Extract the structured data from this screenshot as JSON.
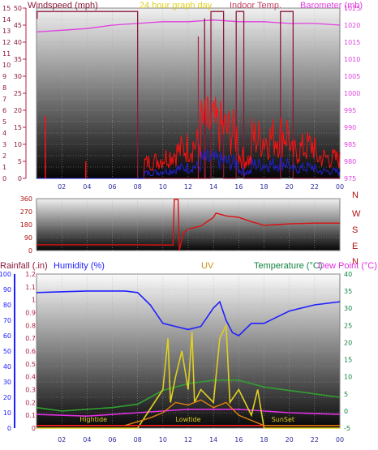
{
  "chart_data": [
    {
      "type": "line",
      "title": "24 hour graph day",
      "labels": {
        "windspeed": "Windspeed (mph)",
        "title": "24 hour graph day",
        "indoor": "Indoor Temp.",
        "barometer": "Barometer (mb)"
      },
      "x_ticks": [
        "02",
        "04",
        "06",
        "08",
        "10",
        "12",
        "14",
        "16",
        "18",
        "20",
        "22",
        "00"
      ],
      "windspeed_axis": {
        "ticks": [
          0,
          1,
          2,
          3,
          4,
          5,
          6,
          7,
          8,
          9,
          10,
          11,
          12,
          13,
          14,
          15
        ],
        "max_label": "50",
        "ylim": [
          0,
          15
        ]
      },
      "mid_axis": {
        "ticks": [
          0,
          5,
          10,
          15,
          20,
          25,
          30,
          35,
          40,
          45,
          50
        ]
      },
      "barometer_axis": {
        "ticks": [
          975,
          980,
          985,
          990,
          995,
          1000,
          1005,
          1010,
          1015,
          1020,
          1025
        ],
        "ylim": [
          975,
          1025
        ]
      },
      "series": [
        {
          "name": "Barometer",
          "color": "#e040e0",
          "points": [
            [
              0,
              1018
            ],
            [
              2,
              1018.5
            ],
            [
              4,
              1019
            ],
            [
              6,
              1020
            ],
            [
              8,
              1020.5
            ],
            [
              10,
              1021
            ],
            [
              12,
              1021
            ],
            [
              14,
              1021.5
            ],
            [
              16,
              1021
            ],
            [
              18,
              1021
            ],
            [
              20,
              1020.5
            ],
            [
              22,
              1020.5
            ],
            [
              24,
              1020
            ]
          ]
        },
        {
          "name": "Indoor Temp.",
          "color": "#8b1a3a",
          "points": [
            [
              0,
              47
            ],
            [
              0.05,
              47
            ],
            [
              0.05,
              49
            ],
            [
              8,
              49
            ],
            [
              8,
              0
            ],
            [
              13.3,
              0
            ],
            [
              13.3,
              47
            ],
            [
              13.35,
              0
            ],
            [
              13.8,
              0
            ],
            [
              13.8,
              49
            ],
            [
              14.8,
              49
            ],
            [
              14.8,
              0
            ],
            [
              15.8,
              0
            ],
            [
              15.8,
              49
            ],
            [
              16.4,
              49
            ],
            [
              16.4,
              0
            ],
            [
              19.3,
              0
            ],
            [
              19.3,
              49
            ],
            [
              20.3,
              49
            ],
            [
              20.3,
              0
            ],
            [
              24,
              0
            ]
          ]
        }
      ]
    },
    {
      "type": "line",
      "title": "",
      "axis_ticks": [
        0,
        90,
        180,
        270,
        360
      ],
      "directions": [
        "N",
        "W",
        "S",
        "E",
        "N"
      ],
      "x_ticks": [
        "02",
        "04",
        "06",
        "08",
        "10",
        "12",
        "14",
        "16",
        "18",
        "20",
        "22",
        "00"
      ],
      "series": [
        {
          "name": "Wind direction",
          "color": "#dd1010",
          "points": [
            [
              0,
              40
            ],
            [
              6,
              40
            ],
            [
              8,
              40
            ],
            [
              10.8,
              38
            ],
            [
              10.9,
              355
            ],
            [
              11.2,
              355
            ],
            [
              11.3,
              0
            ],
            [
              11.6,
              120
            ],
            [
              12,
              150
            ],
            [
              13,
              170
            ],
            [
              13.5,
              200
            ],
            [
              14,
              230
            ],
            [
              14.2,
              260
            ],
            [
              15,
              240
            ],
            [
              16,
              230
            ],
            [
              17,
              200
            ],
            [
              18,
              175
            ],
            [
              19,
              180
            ],
            [
              20,
              185
            ],
            [
              22,
              190
            ],
            [
              24,
              190
            ]
          ]
        }
      ]
    },
    {
      "type": "line",
      "title": "",
      "labels": {
        "rainfall": "Rainfall (.in)",
        "humidity": "Humidity (%)",
        "uv": "UV",
        "temperature": "Temperature (°C)",
        "dewpoint": "Dew Point (°C)"
      },
      "x_ticks": [
        "02",
        "04",
        "06",
        "08",
        "10",
        "12",
        "14",
        "16",
        "18",
        "20",
        "22",
        "00"
      ],
      "humidity_axis": {
        "ticks": [
          0,
          10,
          20,
          30,
          40,
          50,
          60,
          70,
          80,
          90,
          100
        ],
        "ylim": [
          0,
          100
        ]
      },
      "rain_axis": {
        "ticks": [
          0,
          0.1,
          0.2,
          0.3,
          0.4,
          0.5,
          0.6,
          0.7,
          0.8,
          0.9,
          1,
          1.1,
          1.2
        ],
        "ylim": [
          0,
          1.2
        ]
      },
      "temp_axis": {
        "ticks": [
          -5,
          0,
          5,
          10,
          15,
          20,
          25,
          30,
          35,
          40
        ],
        "ylim": [
          -5,
          40
        ]
      },
      "annotations": [
        {
          "text": "Hightide",
          "hour": 4.5
        },
        {
          "text": "Lowtide",
          "hour": 12
        },
        {
          "text": "SunSet",
          "hour": 19.5
        }
      ],
      "series": [
        {
          "name": "Humidity",
          "color": "#2020ff",
          "axis": "humidity",
          "points": [
            [
              0,
              88
            ],
            [
              4,
              89
            ],
            [
              7,
              89
            ],
            [
              8,
              88
            ],
            [
              9,
              80
            ],
            [
              10,
              68
            ],
            [
              11,
              66
            ],
            [
              12,
              64
            ],
            [
              13,
              66
            ],
            [
              14,
              78
            ],
            [
              14.5,
              82
            ],
            [
              15,
              70
            ],
            [
              15.5,
              62
            ],
            [
              16,
              60
            ],
            [
              17,
              68
            ],
            [
              18,
              68
            ],
            [
              19,
              72
            ],
            [
              20,
              76
            ],
            [
              22,
              80
            ],
            [
              24,
              82
            ]
          ]
        },
        {
          "name": "Temperature",
          "color": "#30a030",
          "axis": "temp",
          "points": [
            [
              0,
              1
            ],
            [
              2,
              0
            ],
            [
              4,
              0.5
            ],
            [
              6,
              1
            ],
            [
              8,
              2
            ],
            [
              9,
              4
            ],
            [
              10,
              6
            ],
            [
              12,
              8
            ],
            [
              14,
              9
            ],
            [
              16,
              9
            ],
            [
              17,
              8
            ],
            [
              18,
              7
            ],
            [
              20,
              6
            ],
            [
              22,
              5
            ],
            [
              24,
              4
            ]
          ]
        },
        {
          "name": "Dew Point",
          "color": "#e030e0",
          "axis": "temp",
          "points": [
            [
              0,
              -1
            ],
            [
              4,
              -1.5
            ],
            [
              8,
              -0.5
            ],
            [
              10,
              0
            ],
            [
              12,
              0.5
            ],
            [
              14,
              0.5
            ],
            [
              16,
              0.5
            ],
            [
              18,
              0
            ],
            [
              20,
              -0.5
            ],
            [
              24,
              -1
            ]
          ]
        },
        {
          "name": "UV",
          "color": "#e0d020",
          "axis": "rain",
          "points": [
            [
              0,
              0
            ],
            [
              6,
              0
            ],
            [
              7,
              0
            ],
            [
              8,
              0
            ],
            [
              9,
              0.15
            ],
            [
              10,
              0.3
            ],
            [
              10.4,
              0.7
            ],
            [
              10.6,
              0.2
            ],
            [
              11,
              0.4
            ],
            [
              11.5,
              0.6
            ],
            [
              12,
              0.3
            ],
            [
              12.3,
              0.75
            ],
            [
              12.5,
              0.2
            ],
            [
              13,
              0.3
            ],
            [
              14,
              0.2
            ],
            [
              14.5,
              0.7
            ],
            [
              15,
              0.8
            ],
            [
              15.3,
              0.2
            ],
            [
              16,
              0.3
            ],
            [
              17,
              0.1
            ],
            [
              17.5,
              0.3
            ],
            [
              18,
              0
            ],
            [
              24,
              0
            ]
          ]
        },
        {
          "name": "Rainfall",
          "color": "#ff2020",
          "axis": "rain",
          "points": [
            [
              0,
              0.02
            ],
            [
              24,
              0.02
            ]
          ]
        }
      ]
    }
  ]
}
